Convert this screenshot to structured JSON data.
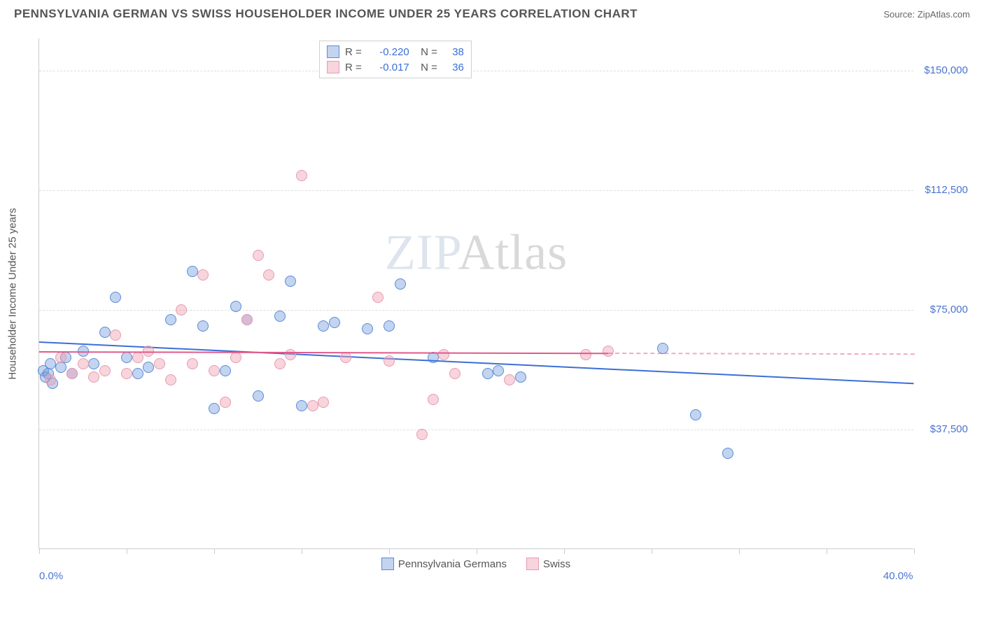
{
  "header": {
    "title": "PENNSYLVANIA GERMAN VS SWISS HOUSEHOLDER INCOME UNDER 25 YEARS CORRELATION CHART",
    "source": "Source: ZipAtlas.com"
  },
  "chart": {
    "type": "scatter",
    "y_axis_label": "Householder Income Under 25 years",
    "xlim": [
      0,
      40
    ],
    "ylim": [
      0,
      160000
    ],
    "x_ticks": [
      0,
      4,
      8,
      12,
      16,
      20,
      24,
      28,
      32,
      36,
      40
    ],
    "x_tick_labels": {
      "0": "0.0%",
      "40": "40.0%"
    },
    "y_gridlines": [
      37500,
      75000,
      112500,
      150000
    ],
    "y_tick_labels": [
      "$37,500",
      "$75,000",
      "$112,500",
      "$150,000"
    ],
    "grid_color": "#dddddd",
    "axis_color": "#cccccc",
    "label_color": "#4a74d0",
    "watermark": "ZIPAtlas",
    "series": [
      {
        "name": "Pennsylvania Germans",
        "key": "pg",
        "fill": "rgba(120,160,220,0.45)",
        "stroke": "#5a8bd8",
        "trend_color": "#3b6fd6",
        "R": "-0.220",
        "N": "38",
        "trend": {
          "x1": 0,
          "y1": 65000,
          "x2": 40,
          "y2": 52000,
          "dash": false,
          "extend_dash_from": null
        },
        "points": [
          [
            0.2,
            56000
          ],
          [
            0.3,
            54000
          ],
          [
            0.4,
            55000
          ],
          [
            0.5,
            58000
          ],
          [
            0.6,
            52000
          ],
          [
            1.0,
            57000
          ],
          [
            1.2,
            60000
          ],
          [
            1.5,
            55000
          ],
          [
            2.0,
            62000
          ],
          [
            2.5,
            58000
          ],
          [
            3.0,
            68000
          ],
          [
            3.5,
            79000
          ],
          [
            4.0,
            60000
          ],
          [
            4.5,
            55000
          ],
          [
            5.0,
            57000
          ],
          [
            6.0,
            72000
          ],
          [
            7.0,
            87000
          ],
          [
            7.5,
            70000
          ],
          [
            8.0,
            44000
          ],
          [
            8.5,
            56000
          ],
          [
            9.0,
            76000
          ],
          [
            9.5,
            72000
          ],
          [
            10.0,
            48000
          ],
          [
            11.0,
            73000
          ],
          [
            11.5,
            84000
          ],
          [
            12.0,
            45000
          ],
          [
            13.0,
            70000
          ],
          [
            13.5,
            71000
          ],
          [
            15.0,
            69000
          ],
          [
            16.0,
            70000
          ],
          [
            16.5,
            83000
          ],
          [
            18.0,
            60000
          ],
          [
            20.5,
            55000
          ],
          [
            21.0,
            56000
          ],
          [
            22.0,
            54000
          ],
          [
            28.5,
            63000
          ],
          [
            30.0,
            42000
          ],
          [
            31.5,
            30000
          ]
        ]
      },
      {
        "name": "Swiss",
        "key": "swiss",
        "fill": "rgba(240,160,180,0.45)",
        "stroke": "#e89bb0",
        "trend_color": "#e05a8a",
        "R": "-0.017",
        "N": "36",
        "trend": {
          "x1": 0,
          "y1": 62000,
          "x2": 26,
          "y2": 61500,
          "dash": false,
          "extend_dash_from": 26
        },
        "points": [
          [
            0.5,
            53000
          ],
          [
            1.0,
            60000
          ],
          [
            1.5,
            55000
          ],
          [
            2.0,
            58000
          ],
          [
            2.5,
            54000
          ],
          [
            3.0,
            56000
          ],
          [
            3.5,
            67000
          ],
          [
            4.0,
            55000
          ],
          [
            4.5,
            60000
          ],
          [
            5.0,
            62000
          ],
          [
            5.5,
            58000
          ],
          [
            6.0,
            53000
          ],
          [
            6.5,
            75000
          ],
          [
            7.0,
            58000
          ],
          [
            7.5,
            86000
          ],
          [
            8.0,
            56000
          ],
          [
            8.5,
            46000
          ],
          [
            9.0,
            60000
          ],
          [
            9.5,
            72000
          ],
          [
            10.0,
            92000
          ],
          [
            10.5,
            86000
          ],
          [
            11.0,
            58000
          ],
          [
            11.5,
            61000
          ],
          [
            12.0,
            117000
          ],
          [
            12.5,
            45000
          ],
          [
            13.0,
            46000
          ],
          [
            14.0,
            60000
          ],
          [
            15.5,
            79000
          ],
          [
            16.0,
            59000
          ],
          [
            17.5,
            36000
          ],
          [
            18.0,
            47000
          ],
          [
            18.5,
            61000
          ],
          [
            19.0,
            55000
          ],
          [
            21.5,
            53000
          ],
          [
            25.0,
            61000
          ],
          [
            26.0,
            62000
          ]
        ]
      }
    ],
    "marker_radius": 8,
    "legend_labels": [
      "Pennsylvania Germans",
      "Swiss"
    ]
  }
}
